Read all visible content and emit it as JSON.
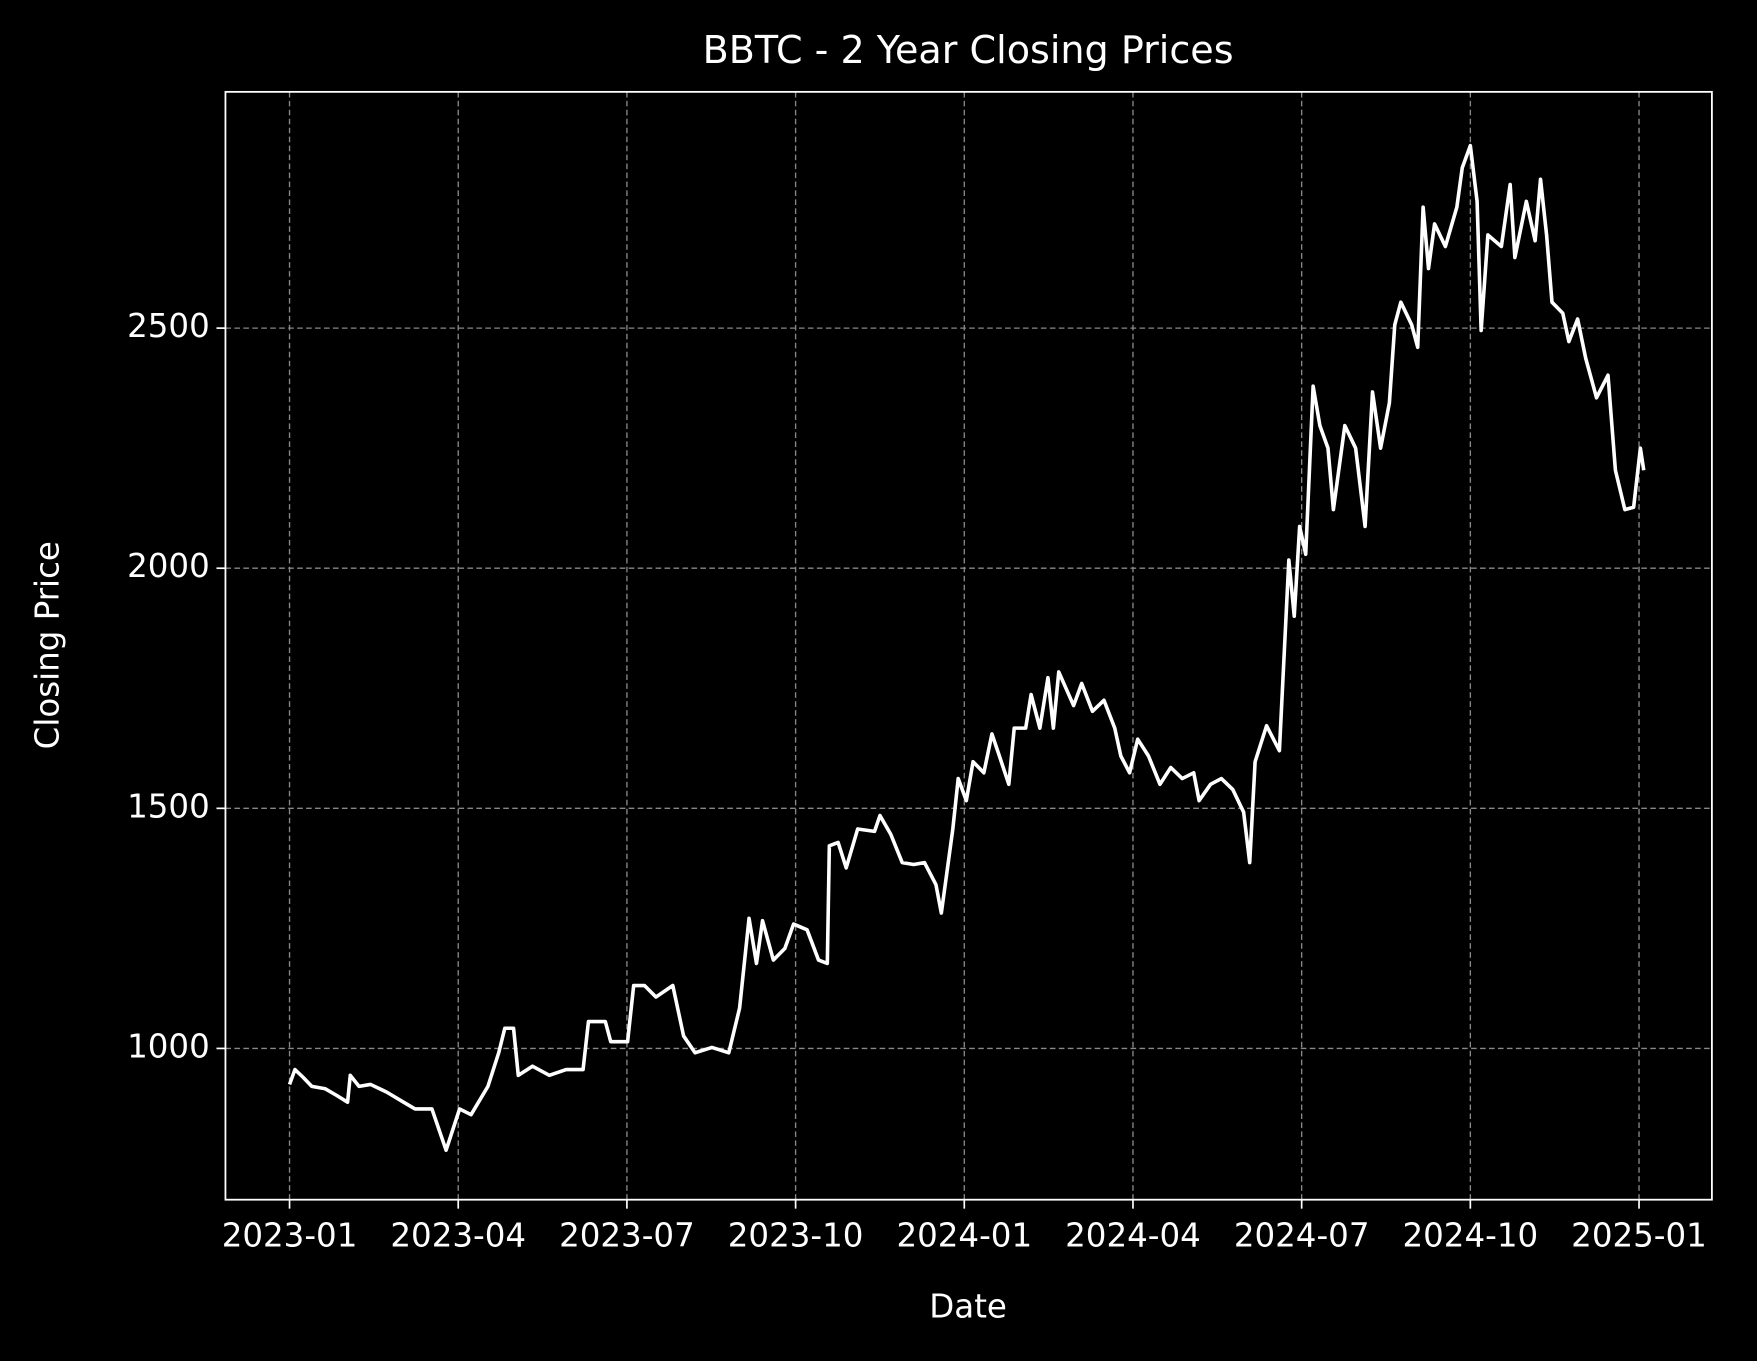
{
  "chart_data": {
    "type": "line",
    "title": "BBTC - 2 Year Closing Prices",
    "xlabel": "Date",
    "ylabel": "Closing Price",
    "color": "#ffffff",
    "grid": true,
    "x": [
      2023.0,
      2023.008,
      2023.02,
      2023.033,
      2023.053,
      2023.07,
      2023.086,
      2023.09,
      2023.103,
      2023.12,
      2023.144,
      2023.169,
      2023.186,
      2023.211,
      2023.232,
      2023.252,
      2023.269,
      2023.294,
      2023.31,
      2023.319,
      2023.332,
      2023.339,
      2023.36,
      2023.385,
      2023.41,
      2023.435,
      2023.443,
      2023.468,
      2023.476,
      2023.501,
      2023.51,
      2023.526,
      2023.543,
      2023.568,
      2023.584,
      2023.601,
      2023.626,
      2023.651,
      2023.667,
      2023.681,
      2023.692,
      2023.701,
      2023.717,
      2023.734,
      2023.747,
      2023.767,
      2023.784,
      2023.797,
      2023.8,
      2023.813,
      2023.825,
      2023.842,
      2023.867,
      2023.875,
      2023.891,
      2023.908,
      2023.925,
      2023.941,
      2023.958,
      2023.966,
      2023.974,
      2023.983,
      2023.991,
      2024.003,
      2024.013,
      2024.029,
      2024.041,
      2024.052,
      2024.066,
      2024.074,
      2024.091,
      2024.099,
      2024.112,
      2024.124,
      2024.132,
      2024.14,
      2024.162,
      2024.174,
      2024.19,
      2024.207,
      2024.223,
      2024.232,
      2024.245,
      2024.257,
      2024.273,
      2024.29,
      2024.306,
      2024.323,
      2024.34,
      2024.348,
      2024.365,
      2024.381,
      2024.398,
      2024.414,
      2024.423,
      2024.431,
      2024.448,
      2024.467,
      2024.481,
      2024.489,
      2024.497,
      2024.506,
      2024.517,
      2024.527,
      2024.539,
      2024.547,
      2024.564,
      2024.58,
      2024.594,
      2024.605,
      2024.617,
      2024.63,
      2024.638,
      2024.647,
      2024.663,
      2024.672,
      2024.68,
      2024.688,
      2024.697,
      2024.713,
      2024.73,
      2024.738,
      2024.75,
      2024.76,
      2024.766,
      2024.776,
      2024.796,
      2024.809,
      2024.816,
      2024.833,
      2024.846,
      2024.854,
      2024.863,
      2024.871,
      2024.887,
      2024.896,
      2024.909,
      2024.921,
      2024.937,
      2024.954,
      2024.965,
      2024.979,
      2024.992,
      2025.002,
      2025.007
    ],
    "values": [
      925,
      956,
      940,
      921,
      916,
      902,
      888,
      944,
      921,
      925,
      909,
      888,
      874,
      874,
      788,
      874,
      862,
      921,
      991,
      1042,
      1042,
      944,
      963,
      944,
      956,
      956,
      1056,
      1056,
      1014,
      1014,
      1131,
      1131,
      1107,
      1131,
      1026,
      991,
      1002,
      991,
      1084,
      1271,
      1177,
      1266,
      1184,
      1208,
      1259,
      1247,
      1184,
      1177,
      1422,
      1429,
      1376,
      1457,
      1452,
      1485,
      1446,
      1387,
      1383,
      1387,
      1341,
      1282,
      1364,
      1457,
      1562,
      1516,
      1597,
      1574,
      1655,
      1609,
      1550,
      1667,
      1667,
      1737,
      1667,
      1772,
      1667,
      1784,
      1714,
      1760,
      1702,
      1725,
      1667,
      1609,
      1574,
      1644,
      1609,
      1550,
      1585,
      1562,
      1574,
      1516,
      1550,
      1562,
      1539,
      1492,
      1387,
      1597,
      1672,
      1620,
      2017,
      1900,
      2087,
      2029,
      2379,
      2297,
      2250,
      2122,
      2297,
      2250,
      2087,
      2367,
      2250,
      2344,
      2507,
      2554,
      2507,
      2460,
      2752,
      2624,
      2717,
      2670,
      2752,
      2834,
      2880,
      2764,
      2495,
      2694,
      2670,
      2799,
      2647,
      2764,
      2682,
      2810,
      2694,
      2554,
      2531,
      2472,
      2519,
      2437,
      2355,
      2402,
      2204,
      2122,
      2127,
      2250,
      2204
    ],
    "xlim": [
      2022.905,
      2025.108
    ],
    "xticks": [
      {
        "value": 2023.0,
        "label": "2023-01"
      },
      {
        "value": 2023.25,
        "label": "2023-04"
      },
      {
        "value": 2023.5,
        "label": "2023-07"
      },
      {
        "value": 2023.75,
        "label": "2023-10"
      },
      {
        "value": 2024.0,
        "label": "2024-01"
      },
      {
        "value": 2024.25,
        "label": "2024-04"
      },
      {
        "value": 2024.5,
        "label": "2024-07"
      },
      {
        "value": 2024.75,
        "label": "2024-10"
      },
      {
        "value": 2025.0,
        "label": "2025-01"
      }
    ],
    "ylim": [
      685,
      2992
    ],
    "yticks": [
      1000,
      1500,
      2000,
      2500
    ]
  }
}
